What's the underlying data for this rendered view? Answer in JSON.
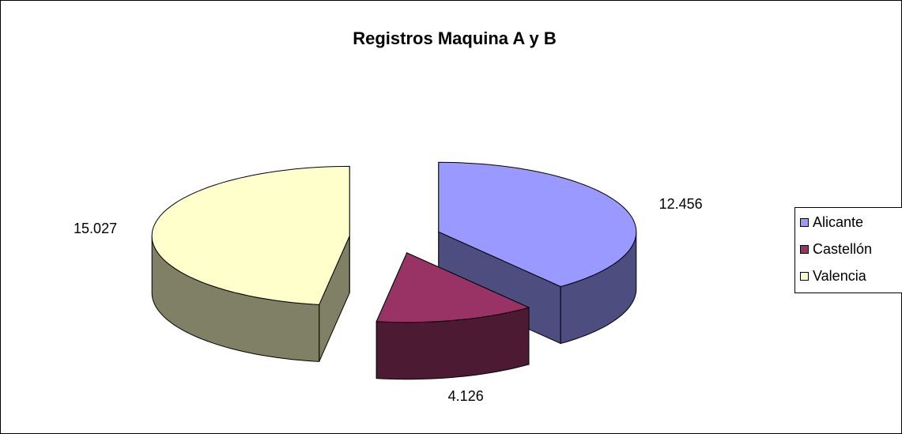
{
  "chart_data": {
    "type": "pie3d",
    "title": "Registros Maquina A y B",
    "categories": [
      "Alicante",
      "Castellón",
      "Valencia"
    ],
    "values": [
      12456,
      4126,
      15027
    ],
    "value_labels": [
      "12.456",
      "4.126",
      "15.027"
    ],
    "colors": [
      "#9999ff",
      "#993366",
      "#ffffcc"
    ],
    "legend": "right"
  }
}
